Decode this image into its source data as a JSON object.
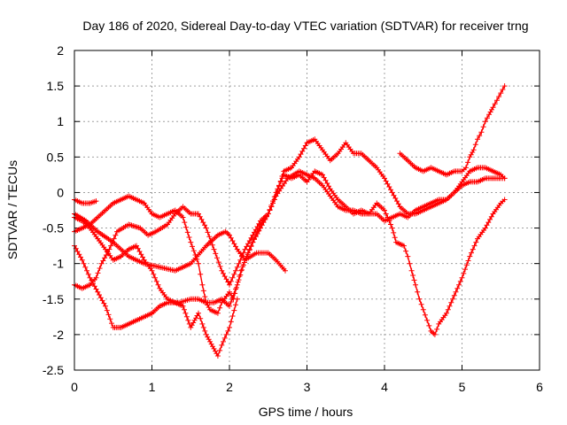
{
  "chart_data": {
    "type": "scatter",
    "title": "Day 186 of 2020, Sidereal Day-to-day VTEC variation (SDTVAR) for receiver trng",
    "xlabel": "GPS time / hours",
    "ylabel": "SDTVAR / TECUs",
    "xlim": [
      0,
      6
    ],
    "ylim": [
      -2.5,
      2
    ],
    "xticks": [
      0,
      1,
      2,
      3,
      4,
      5,
      6
    ],
    "xtick_labels": [
      "0",
      "1",
      "2",
      "3",
      "4",
      "5",
      "6"
    ],
    "yticks": [
      -2.5,
      -2,
      -1.5,
      -1,
      -0.5,
      0,
      0.5,
      1,
      1.5,
      2
    ],
    "ytick_labels": [
      "-2.5",
      "-2",
      "-1.5",
      "-1",
      "-0.5",
      "0",
      "0.5",
      "1",
      "1.5",
      "2"
    ],
    "grid": true,
    "legend": "none",
    "marker": "+",
    "color": "#ff0000",
    "series": [
      {
        "name": "s1",
        "points": [
          [
            0.0,
            -0.1
          ],
          [
            0.1,
            -0.15
          ],
          [
            0.2,
            -0.15
          ],
          [
            0.28,
            -0.12
          ]
        ]
      },
      {
        "name": "s2",
        "points": [
          [
            0.0,
            -0.3
          ],
          [
            0.15,
            -0.4
          ],
          [
            0.3,
            -0.55
          ],
          [
            0.5,
            -0.7
          ],
          [
            0.7,
            -0.9
          ],
          [
            0.9,
            -1.0
          ],
          [
            1.1,
            -1.05
          ],
          [
            1.3,
            -1.1
          ],
          [
            1.5,
            -1.0
          ],
          [
            1.7,
            -0.75
          ],
          [
            1.85,
            -0.6
          ],
          [
            1.95,
            -0.55
          ],
          [
            2.0,
            -0.6
          ],
          [
            2.1,
            -0.8
          ],
          [
            2.2,
            -0.95
          ],
          [
            2.35,
            -0.85
          ],
          [
            2.5,
            -0.85
          ],
          [
            2.6,
            -0.95
          ],
          [
            2.72,
            -1.1
          ]
        ]
      },
      {
        "name": "s3",
        "points": [
          [
            0.0,
            -0.75
          ],
          [
            0.1,
            -0.95
          ],
          [
            0.2,
            -1.2
          ],
          [
            0.3,
            -1.4
          ],
          [
            0.4,
            -1.6
          ],
          [
            0.5,
            -1.9
          ],
          [
            0.6,
            -1.9
          ],
          [
            0.7,
            -1.85
          ],
          [
            0.8,
            -1.8
          ],
          [
            0.9,
            -1.75
          ],
          [
            1.0,
            -1.7
          ],
          [
            1.1,
            -1.6
          ],
          [
            1.2,
            -1.55
          ],
          [
            1.35,
            -1.55
          ],
          [
            1.5,
            -1.5
          ],
          [
            1.6,
            -1.5
          ],
          [
            1.7,
            -1.55
          ],
          [
            1.8,
            -1.55
          ],
          [
            1.9,
            -1.5
          ],
          [
            2.0,
            -1.6
          ],
          [
            2.1,
            -1.3
          ],
          [
            2.2,
            -0.95
          ],
          [
            2.3,
            -0.7
          ],
          [
            2.4,
            -0.45
          ],
          [
            2.5,
            -0.3
          ],
          [
            2.6,
            -0.05
          ],
          [
            2.75,
            0.2
          ],
          [
            2.9,
            0.3
          ],
          [
            3.0,
            0.25
          ],
          [
            3.1,
            0.2
          ],
          [
            3.2,
            0.1
          ],
          [
            3.3,
            -0.05
          ],
          [
            3.4,
            -0.2
          ],
          [
            3.5,
            -0.25
          ],
          [
            3.6,
            -0.25
          ],
          [
            3.7,
            -0.3
          ],
          [
            3.8,
            -0.3
          ],
          [
            3.9,
            -0.3
          ],
          [
            4.0,
            -0.4
          ],
          [
            4.1,
            -0.35
          ],
          [
            4.2,
            -0.3
          ],
          [
            4.3,
            -0.35
          ],
          [
            4.4,
            -0.25
          ],
          [
            4.5,
            -0.2
          ],
          [
            4.6,
            -0.15
          ],
          [
            4.7,
            -0.1
          ],
          [
            4.8,
            -0.1
          ],
          [
            4.9,
            0.0
          ],
          [
            5.0,
            0.1
          ],
          [
            5.1,
            0.15
          ],
          [
            5.2,
            0.15
          ],
          [
            5.3,
            0.2
          ],
          [
            5.4,
            0.2
          ],
          [
            5.5,
            0.2
          ],
          [
            5.55,
            0.2
          ]
        ]
      },
      {
        "name": "s4",
        "points": [
          [
            0.0,
            -1.3
          ],
          [
            0.1,
            -1.35
          ],
          [
            0.2,
            -1.3
          ],
          [
            0.28,
            -1.2
          ],
          [
            0.35,
            -1.0
          ],
          [
            0.45,
            -0.8
          ],
          [
            0.55,
            -0.55
          ],
          [
            0.7,
            -0.45
          ],
          [
            0.85,
            -0.5
          ],
          [
            0.95,
            -0.6
          ],
          [
            1.05,
            -0.55
          ],
          [
            1.2,
            -0.45
          ],
          [
            1.3,
            -0.3
          ],
          [
            1.4,
            -0.2
          ],
          [
            1.5,
            -0.3
          ],
          [
            1.6,
            -0.3
          ],
          [
            1.7,
            -0.5
          ],
          [
            1.8,
            -0.8
          ],
          [
            1.9,
            -1.1
          ],
          [
            2.0,
            -1.3
          ],
          [
            2.1,
            -1.05
          ],
          [
            2.2,
            -0.8
          ],
          [
            2.3,
            -0.6
          ],
          [
            2.4,
            -0.4
          ],
          [
            2.5,
            -0.3
          ],
          [
            2.6,
            -0.05
          ],
          [
            2.7,
            0.3
          ],
          [
            2.8,
            0.35
          ],
          [
            2.9,
            0.5
          ],
          [
            3.0,
            0.7
          ],
          [
            3.1,
            0.75
          ],
          [
            3.2,
            0.6
          ],
          [
            3.3,
            0.45
          ],
          [
            3.4,
            0.55
          ],
          [
            3.5,
            0.7
          ],
          [
            3.6,
            0.55
          ],
          [
            3.7,
            0.55
          ],
          [
            3.8,
            0.45
          ],
          [
            3.9,
            0.35
          ],
          [
            4.0,
            0.2
          ],
          [
            4.1,
            0.0
          ],
          [
            4.2,
            -0.2
          ],
          [
            4.3,
            -0.3
          ],
          [
            4.4,
            -0.3
          ],
          [
            4.5,
            -0.25
          ],
          [
            4.6,
            -0.2
          ],
          [
            4.7,
            -0.15
          ],
          [
            4.8,
            -0.1
          ],
          [
            4.9,
            0.0
          ],
          [
            5.0,
            0.15
          ],
          [
            5.1,
            0.3
          ],
          [
            5.2,
            0.35
          ],
          [
            5.3,
            0.35
          ],
          [
            5.4,
            0.3
          ],
          [
            5.5,
            0.25
          ],
          [
            5.55,
            0.2
          ]
        ]
      },
      {
        "name": "s5",
        "points": [
          [
            0.0,
            -0.55
          ],
          [
            0.1,
            -0.5
          ],
          [
            0.2,
            -0.45
          ],
          [
            0.3,
            -0.35
          ],
          [
            0.4,
            -0.25
          ],
          [
            0.5,
            -0.15
          ],
          [
            0.6,
            -0.1
          ],
          [
            0.7,
            -0.05
          ],
          [
            0.8,
            -0.1
          ],
          [
            0.9,
            -0.15
          ],
          [
            1.0,
            -0.3
          ],
          [
            1.1,
            -0.35
          ],
          [
            1.2,
            -0.3
          ],
          [
            1.3,
            -0.25
          ],
          [
            1.4,
            -0.35
          ],
          [
            1.5,
            -0.7
          ],
          [
            1.6,
            -1.0
          ],
          [
            1.65,
            -1.3
          ],
          [
            1.7,
            -1.55
          ],
          [
            1.75,
            -1.65
          ],
          [
            1.85,
            -1.7
          ],
          [
            1.9,
            -1.55
          ],
          [
            2.0,
            -1.4
          ],
          [
            2.05,
            -1.5
          ],
          [
            2.15,
            -1.1
          ],
          [
            2.3,
            -0.7
          ],
          [
            2.4,
            -0.5
          ],
          [
            2.5,
            -0.3
          ],
          [
            2.6,
            0.0
          ],
          [
            2.7,
            0.25
          ],
          [
            2.8,
            0.2
          ],
          [
            2.9,
            0.25
          ],
          [
            3.0,
            0.15
          ],
          [
            3.1,
            0.3
          ],
          [
            3.2,
            0.25
          ],
          [
            3.3,
            0.05
          ],
          [
            3.4,
            -0.1
          ],
          [
            3.5,
            -0.2
          ],
          [
            3.6,
            -0.3
          ],
          [
            3.7,
            -0.25
          ],
          [
            3.8,
            -0.3
          ],
          [
            3.9,
            -0.15
          ],
          [
            4.0,
            -0.25
          ],
          [
            4.1,
            -0.5
          ],
          [
            4.15,
            -0.7
          ],
          [
            4.25,
            -0.75
          ],
          [
            4.3,
            -0.9
          ],
          [
            4.35,
            -1.1
          ],
          [
            4.4,
            -1.3
          ],
          [
            4.45,
            -1.5
          ],
          [
            4.5,
            -1.65
          ],
          [
            4.55,
            -1.8
          ],
          [
            4.6,
            -1.95
          ],
          [
            4.65,
            -2.0
          ],
          [
            4.7,
            -1.85
          ],
          [
            4.8,
            -1.7
          ],
          [
            4.9,
            -1.45
          ],
          [
            5.0,
            -1.2
          ],
          [
            5.1,
            -0.9
          ],
          [
            5.2,
            -0.65
          ],
          [
            5.3,
            -0.5
          ],
          [
            5.4,
            -0.3
          ],
          [
            5.5,
            -0.15
          ],
          [
            5.55,
            -0.1
          ]
        ]
      },
      {
        "name": "s6",
        "points": [
          [
            0.0,
            -0.35
          ],
          [
            0.1,
            -0.4
          ],
          [
            0.2,
            -0.5
          ],
          [
            0.3,
            -0.65
          ],
          [
            0.4,
            -0.8
          ],
          [
            0.5,
            -0.95
          ],
          [
            0.6,
            -0.9
          ],
          [
            0.7,
            -0.8
          ],
          [
            0.8,
            -0.75
          ],
          [
            0.9,
            -0.95
          ],
          [
            1.0,
            -1.1
          ],
          [
            1.1,
            -1.35
          ],
          [
            1.2,
            -1.5
          ],
          [
            1.3,
            -1.55
          ],
          [
            1.4,
            -1.6
          ],
          [
            1.45,
            -1.75
          ],
          [
            1.5,
            -1.9
          ],
          [
            1.55,
            -1.8
          ],
          [
            1.6,
            -1.7
          ],
          [
            1.65,
            -1.85
          ],
          [
            1.7,
            -2.0
          ],
          [
            1.75,
            -2.1
          ],
          [
            1.8,
            -2.2
          ],
          [
            1.85,
            -2.3
          ],
          [
            1.9,
            -2.15
          ],
          [
            2.0,
            -1.9
          ],
          [
            2.1,
            -1.5
          ]
        ]
      },
      {
        "name": "s7",
        "points": [
          [
            4.2,
            0.55
          ],
          [
            4.3,
            0.45
          ],
          [
            4.4,
            0.35
          ],
          [
            4.5,
            0.3
          ],
          [
            4.6,
            0.35
          ],
          [
            4.7,
            0.3
          ],
          [
            4.8,
            0.25
          ],
          [
            4.9,
            0.3
          ],
          [
            5.0,
            0.3
          ],
          [
            5.05,
            0.35
          ],
          [
            5.1,
            0.5
          ],
          [
            5.15,
            0.6
          ],
          [
            5.2,
            0.75
          ],
          [
            5.25,
            0.85
          ],
          [
            5.3,
            1.0
          ],
          [
            5.35,
            1.1
          ],
          [
            5.4,
            1.2
          ],
          [
            5.45,
            1.3
          ],
          [
            5.5,
            1.4
          ],
          [
            5.55,
            1.5
          ]
        ]
      }
    ]
  }
}
